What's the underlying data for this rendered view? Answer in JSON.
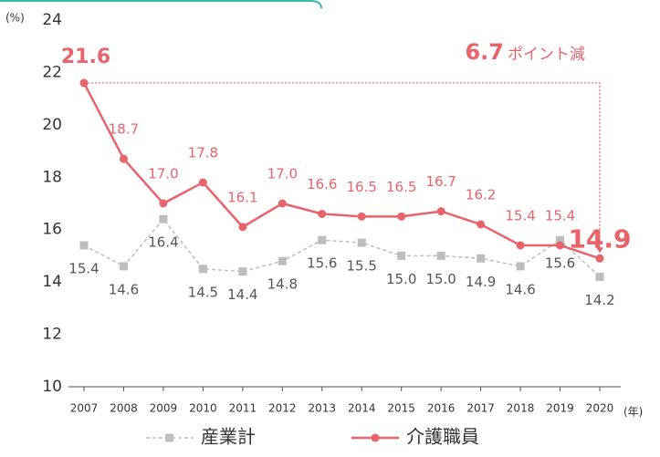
{
  "chart_data": {
    "type": "line",
    "y_unit_label": "(%)",
    "x_unit_label": "(年)",
    "annotation": [
      "6.7",
      "ポイント減"
    ],
    "x": [
      2007,
      2008,
      2009,
      2010,
      2011,
      2012,
      2013,
      2014,
      2015,
      2016,
      2017,
      2018,
      2019,
      2020
    ],
    "series": [
      {
        "name": "産業計",
        "color": "#bdbdbd",
        "dashed": true,
        "marker": "square",
        "values": [
          15.4,
          14.6,
          16.4,
          14.5,
          14.4,
          14.8,
          15.6,
          15.5,
          15.0,
          15.0,
          14.9,
          14.6,
          15.6,
          14.2
        ],
        "value_labels": [
          "15.4",
          "14.6",
          "16.4",
          "14.5",
          "14.4",
          "14.8",
          "15.6",
          "15.5",
          "15.0",
          "15.0",
          "14.9",
          "14.6",
          "15.6",
          "14.2"
        ]
      },
      {
        "name": "介護職員",
        "color": "#e8636a",
        "dashed": false,
        "marker": "circle",
        "values": [
          21.6,
          18.7,
          17.0,
          17.8,
          16.1,
          17.0,
          16.6,
          16.5,
          16.5,
          16.7,
          16.2,
          15.4,
          15.4,
          14.9
        ],
        "value_labels": [
          "21.6",
          "18.7",
          "17.0",
          "17.8",
          "16.1",
          "17.0",
          "16.6",
          "16.5",
          "16.5",
          "16.7",
          "16.2",
          "15.4",
          "15.4",
          "14.9"
        ]
      }
    ],
    "ylim": [
      10,
      24
    ],
    "yticks": [
      10,
      12,
      14,
      16,
      18,
      20,
      22,
      24
    ],
    "grid": false
  }
}
